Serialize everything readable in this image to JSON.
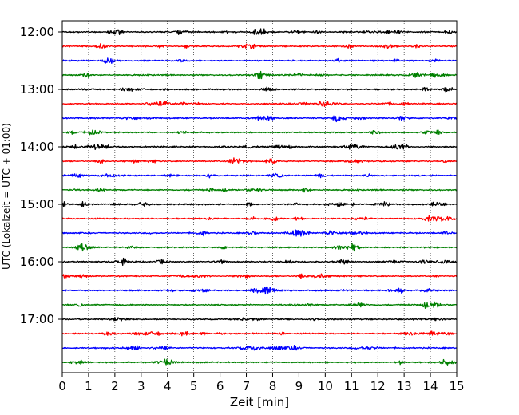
{
  "chart_data": {
    "type": "line",
    "title": "",
    "xlabel": "Zeit  [min]",
    "ylabel": "UTC (Lokalzeit = UTC + 01:00)",
    "xlim": [
      0,
      15
    ],
    "x_ticks": [
      "0",
      "1",
      "2",
      "3",
      "4",
      "5",
      "6",
      "7",
      "8",
      "9",
      "10",
      "11",
      "12",
      "13",
      "14",
      "15"
    ],
    "y_ticks": [
      "12:00",
      "13:00",
      "14:00",
      "15:00",
      "16:00",
      "17:00"
    ],
    "grid": "vertical dotted lines at each minute",
    "trace_interval_min": 15,
    "start_time": "12:00",
    "trace_count": 24,
    "trace_colors": [
      "#000000",
      "#ff0000",
      "#0000ff",
      "#008000"
    ],
    "series_type": "seismic noise traces (helicorder), one trace per 15 minutes"
  }
}
